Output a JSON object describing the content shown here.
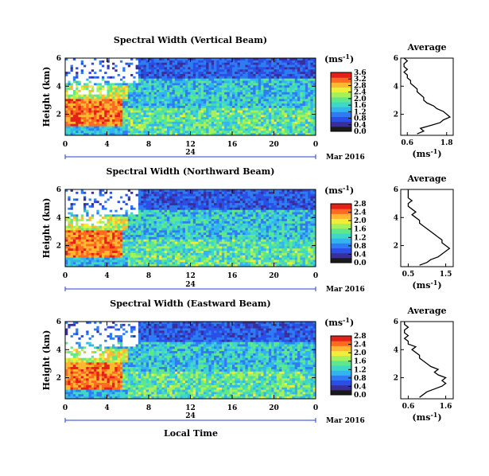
{
  "colors": {
    "colormap": [
      "#1a1a1a",
      "#3a2f9a",
      "#2a4ee6",
      "#2f7cf2",
      "#33b4f0",
      "#3fd8c8",
      "#5fe88a",
      "#a8f05a",
      "#f0ee3a",
      "#ffb830",
      "#ff6a22",
      "#e52018"
    ],
    "no_data": "#ffffff"
  },
  "shared": {
    "x_ticks": [
      "0",
      "4",
      "8",
      "12",
      "16",
      "20",
      "0"
    ],
    "date_mid": "24",
    "date_month": "Mar 2016",
    "xlabel": "Local Time",
    "ylabel": "Height (km)",
    "y_ticks": [
      "2",
      "4",
      "6"
    ],
    "cbar_unit": "(ms",
    "cbar_exp": "-1",
    "cbar_close": ")",
    "avg_title": "Average",
    "avg_xlabel": "(ms",
    "avg_xlabel_exp": "-1",
    "avg_xlabel_close": ")"
  },
  "chart_data": [
    {
      "type": "heatmap",
      "title": "Spectral Width (Vertical Beam)",
      "x_range_hours": [
        0,
        24
      ],
      "y_range_km": [
        0.5,
        6
      ],
      "cbar_ticks": [
        "0.0",
        "0.4",
        "0.8",
        "1.2",
        "1.6",
        "2.0",
        "2.4",
        "2.8",
        "3.2",
        "3.6"
      ],
      "cbar_range": [
        0.0,
        3.6
      ],
      "average": {
        "title": "Average",
        "x_ticks": [
          "0.6",
          "1.8"
        ],
        "xlim": [
          0.4,
          2.0
        ],
        "y_ticks": [
          "2",
          "4",
          "6"
        ],
        "height_km": [
          0.6,
          0.8,
          1.0,
          1.2,
          1.4,
          1.6,
          1.8,
          2.0,
          2.2,
          2.4,
          2.6,
          2.8,
          3.0,
          3.2,
          3.4,
          3.6,
          3.8,
          4.0,
          4.2,
          4.4,
          4.6,
          4.8,
          5.0,
          5.2,
          5.4,
          5.6,
          5.8,
          6.0
        ],
        "width_ms": [
          0.9,
          1.1,
          1.0,
          1.3,
          1.6,
          1.7,
          1.9,
          1.8,
          1.7,
          1.5,
          1.4,
          1.2,
          1.1,
          1.1,
          1.0,
          0.9,
          0.9,
          0.8,
          0.7,
          0.7,
          0.6,
          0.6,
          0.5,
          0.6,
          0.5,
          0.5,
          0.6,
          0.5
        ]
      }
    },
    {
      "type": "heatmap",
      "title": "Spectral Width (Northward Beam)",
      "x_range_hours": [
        0,
        24
      ],
      "y_range_km": [
        0.5,
        6
      ],
      "cbar_ticks": [
        "0.0",
        "0.4",
        "0.8",
        "1.2",
        "1.6",
        "2.0",
        "2.4",
        "2.8"
      ],
      "cbar_range": [
        0.0,
        2.8
      ],
      "average": {
        "title": "Average",
        "x_ticks": [
          "0.5",
          "1.5"
        ],
        "xlim": [
          0.3,
          1.7
        ],
        "y_ticks": [
          "2",
          "4",
          "6"
        ],
        "height_km": [
          0.6,
          0.8,
          1.0,
          1.2,
          1.4,
          1.6,
          1.8,
          2.0,
          2.2,
          2.4,
          2.6,
          2.8,
          3.0,
          3.2,
          3.4,
          3.6,
          3.8,
          4.0,
          4.2,
          4.4,
          4.6,
          4.8,
          5.0,
          5.2,
          5.4,
          5.6,
          5.8,
          6.0
        ],
        "width_ms": [
          0.8,
          1.0,
          1.1,
          1.3,
          1.4,
          1.5,
          1.6,
          1.5,
          1.4,
          1.4,
          1.3,
          1.2,
          1.1,
          1.0,
          0.9,
          0.8,
          0.8,
          0.7,
          0.6,
          0.7,
          0.6,
          0.5,
          0.5,
          0.6,
          0.5,
          0.5,
          0.5,
          0.5
        ]
      }
    },
    {
      "type": "heatmap",
      "title": "Spectral Width (Eastward Beam)",
      "x_range_hours": [
        0,
        24
      ],
      "y_range_km": [
        0.5,
        6
      ],
      "cbar_ticks": [
        "0.0",
        "0.4",
        "0.8",
        "1.2",
        "1.6",
        "2.0",
        "2.4",
        "2.8"
      ],
      "cbar_range": [
        0.0,
        2.8
      ],
      "average": {
        "title": "Average",
        "x_ticks": [
          "0.6",
          "1.6"
        ],
        "xlim": [
          0.4,
          1.8
        ],
        "y_ticks": [
          "2",
          "4",
          "6"
        ],
        "height_km": [
          0.6,
          0.8,
          1.0,
          1.2,
          1.4,
          1.6,
          1.8,
          2.0,
          2.2,
          2.4,
          2.6,
          2.8,
          3.0,
          3.2,
          3.4,
          3.6,
          3.8,
          4.0,
          4.2,
          4.4,
          4.6,
          4.8,
          5.0,
          5.2,
          5.4,
          5.6,
          5.8,
          6.0
        ],
        "width_ms": [
          0.9,
          1.0,
          1.1,
          1.3,
          1.5,
          1.6,
          1.5,
          1.6,
          1.4,
          1.3,
          1.4,
          1.2,
          1.1,
          1.0,
          0.9,
          0.9,
          0.8,
          0.7,
          0.8,
          0.6,
          0.6,
          0.5,
          0.6,
          0.5,
          0.5,
          0.6,
          0.5,
          0.5
        ]
      }
    }
  ]
}
